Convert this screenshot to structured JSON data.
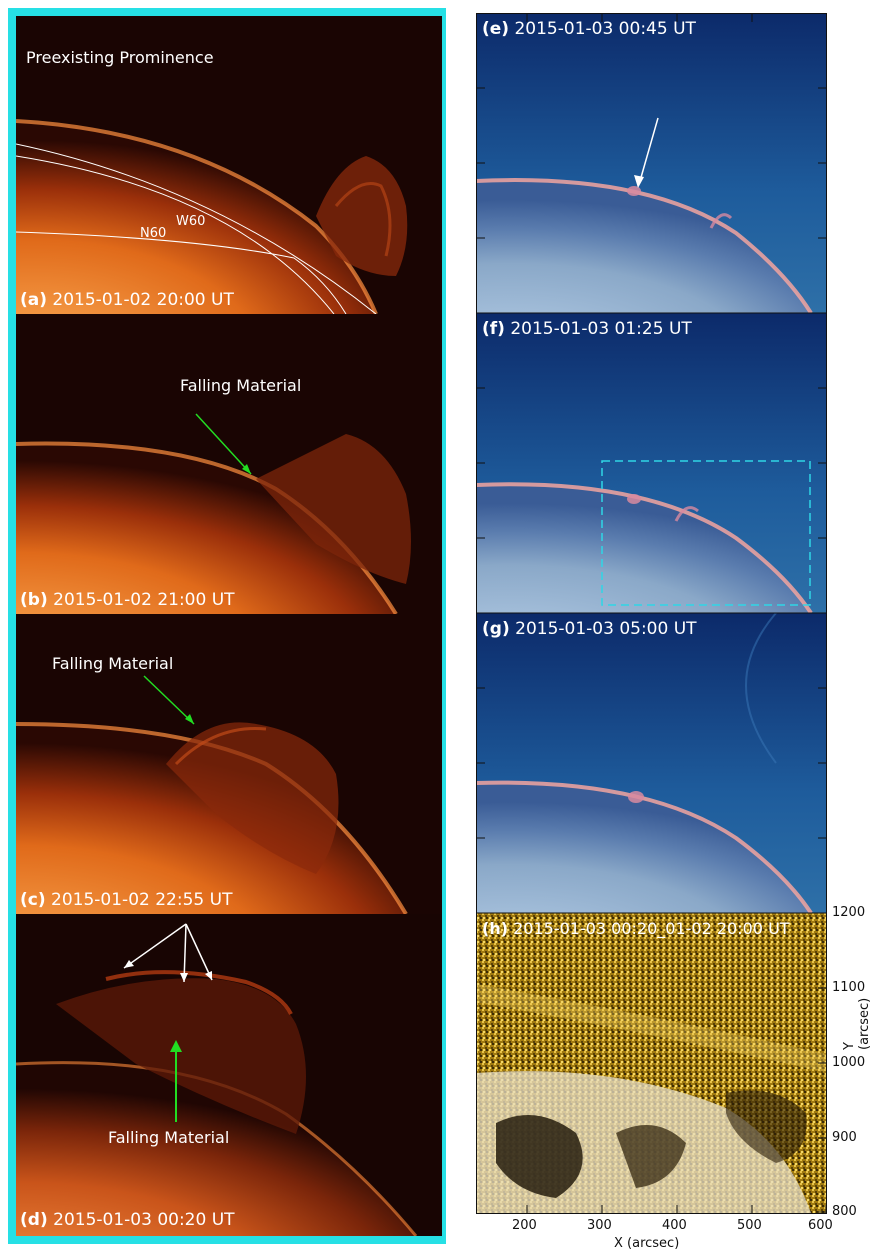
{
  "panels": {
    "a": {
      "letter": "(a)",
      "time": "2015-01-02 20:00 UT",
      "annotation": "Preexisting Prominence",
      "grid_labels": [
        "W60",
        "N60"
      ]
    },
    "b": {
      "letter": "(b)",
      "time": "2015-01-02 21:00 UT",
      "annotation": "Falling Material"
    },
    "c": {
      "letter": "(c)",
      "time": "2015-01-02 22:55 UT",
      "annotation": "Falling Material"
    },
    "d": {
      "letter": "(d)",
      "time": "2015-01-03 00:20 UT",
      "annotation": "Falling Material"
    },
    "e": {
      "letter": "(e)",
      "time": "2015-01-03 00:45 UT"
    },
    "f": {
      "letter": "(f)",
      "time": "2015-01-03 01:25 UT"
    },
    "g": {
      "letter": "(g)",
      "time": "2015-01-03 05:00 UT"
    },
    "h": {
      "letter": "(h)",
      "time": "2015-01-03 00:20_01-02 20:00 UT"
    }
  },
  "axes": {
    "xlabel": "X (arcsec)",
    "ylabel": "Y (arcsec)",
    "xticks": [
      "200",
      "300",
      "400",
      "500",
      "600"
    ],
    "yticks": [
      "800",
      "900",
      "1000",
      "1100",
      "1200"
    ]
  },
  "colors": {
    "frame": "#26e0e5",
    "arrow_green": "#22dd22",
    "arrow_white": "#ffffff",
    "box_dashed": "#2fd6e6"
  }
}
